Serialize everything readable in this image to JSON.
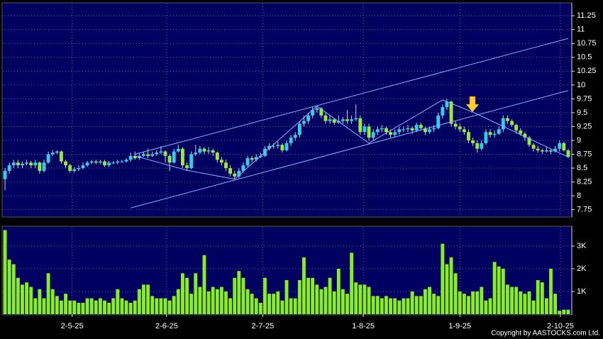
{
  "chart_data": [
    {
      "type": "candlestick",
      "up_color": "#33ccee",
      "down_color": "#99e83a",
      "wick_color": "#cfcfcf",
      "line_color": "#7fb2ff",
      "open": [
        8.3,
        8.45,
        8.55,
        8.6,
        8.55,
        8.58,
        8.6,
        8.55,
        8.6,
        8.45,
        8.6,
        8.75,
        8.78,
        8.8,
        8.62,
        8.55,
        8.45,
        8.48,
        8.5,
        8.55,
        8.6,
        8.62,
        8.6,
        8.62,
        8.55,
        8.6,
        8.6,
        8.62,
        8.62,
        8.65,
        8.72,
        8.68,
        8.72,
        8.75,
        8.72,
        8.75,
        8.78,
        8.8,
        8.72,
        8.6,
        8.8,
        8.85,
        8.55,
        8.5,
        8.75,
        8.78,
        8.85,
        8.8,
        8.82,
        8.78,
        8.65,
        8.6,
        8.5,
        8.4,
        8.35,
        8.45,
        8.55,
        8.68,
        8.65,
        8.7,
        8.72,
        8.85,
        8.9,
        8.9,
        8.92,
        8.82,
        8.95,
        9.05,
        9.1,
        9.3,
        9.35,
        9.45,
        9.55,
        9.58,
        9.45,
        9.35,
        9.38,
        9.32,
        9.35,
        9.38,
        9.35,
        9.38,
        9.4,
        9.15,
        9.25,
        9.05,
        9.15,
        9.2,
        9.22,
        9.15,
        9.1,
        9.15,
        9.2,
        9.2,
        9.22,
        9.18,
        9.28,
        9.22,
        9.15,
        9.2,
        9.22,
        9.45,
        9.6,
        9.7,
        9.3,
        9.25,
        9.2,
        9.15,
        9.0,
        8.95,
        8.85,
        8.95,
        9.15,
        9.1,
        9.12,
        9.2,
        9.4,
        9.35,
        9.28,
        9.18,
        9.12,
        9.05,
        8.92,
        8.85,
        8.82,
        8.8,
        8.82,
        8.8,
        8.85,
        8.95,
        8.82
      ],
      "high": [
        8.5,
        8.6,
        8.65,
        8.65,
        8.62,
        8.65,
        8.63,
        8.65,
        8.62,
        8.65,
        8.8,
        8.82,
        8.82,
        8.82,
        8.65,
        8.58,
        8.52,
        8.55,
        8.6,
        8.63,
        8.65,
        8.65,
        8.65,
        8.65,
        8.63,
        8.63,
        8.65,
        8.65,
        8.68,
        8.78,
        8.8,
        8.78,
        8.8,
        8.85,
        8.8,
        8.82,
        8.9,
        8.82,
        8.75,
        8.85,
        8.92,
        8.88,
        8.6,
        8.8,
        8.92,
        8.9,
        8.88,
        8.88,
        8.85,
        8.8,
        8.7,
        8.65,
        8.55,
        8.45,
        8.5,
        8.6,
        8.72,
        8.72,
        8.75,
        8.78,
        8.9,
        8.95,
        8.95,
        8.98,
        8.95,
        9.0,
        9.1,
        9.15,
        9.35,
        9.45,
        9.5,
        9.6,
        9.62,
        9.6,
        9.5,
        9.45,
        9.4,
        9.45,
        9.42,
        9.55,
        9.45,
        9.65,
        9.45,
        9.3,
        9.3,
        9.2,
        9.25,
        9.28,
        9.25,
        9.2,
        9.2,
        9.25,
        9.25,
        9.28,
        9.25,
        9.32,
        9.32,
        9.25,
        9.25,
        9.28,
        9.5,
        9.65,
        9.75,
        9.72,
        9.35,
        9.3,
        9.25,
        9.2,
        9.05,
        9.0,
        9.0,
        9.2,
        9.2,
        9.18,
        9.25,
        9.45,
        9.45,
        9.38,
        9.3,
        9.22,
        9.15,
        9.08,
        8.95,
        8.9,
        8.85,
        8.88,
        8.85,
        8.9,
        9.0,
        8.98,
        8.85
      ],
      "low": [
        8.1,
        8.4,
        8.5,
        8.5,
        8.5,
        8.55,
        8.5,
        8.5,
        8.4,
        8.42,
        8.58,
        8.72,
        8.75,
        8.58,
        8.5,
        8.42,
        8.42,
        8.45,
        8.48,
        8.52,
        8.57,
        8.57,
        8.57,
        8.52,
        8.52,
        8.57,
        8.57,
        8.6,
        8.6,
        8.62,
        8.65,
        8.65,
        8.7,
        8.68,
        8.7,
        8.72,
        8.75,
        8.6,
        8.45,
        8.58,
        8.78,
        8.5,
        8.45,
        8.48,
        8.72,
        8.75,
        8.75,
        8.75,
        8.72,
        8.6,
        8.55,
        8.45,
        8.35,
        8.3,
        8.32,
        8.42,
        8.52,
        8.6,
        8.62,
        8.68,
        8.7,
        8.82,
        8.85,
        8.85,
        8.78,
        8.8,
        8.9,
        9.0,
        9.05,
        9.25,
        9.3,
        9.4,
        9.5,
        9.4,
        9.3,
        9.3,
        9.28,
        9.3,
        9.3,
        9.3,
        9.3,
        9.35,
        9.1,
        9.1,
        9.0,
        9.0,
        9.1,
        9.15,
        9.1,
        9.05,
        9.05,
        9.1,
        9.15,
        9.15,
        9.12,
        9.15,
        9.18,
        9.1,
        9.12,
        9.15,
        9.2,
        9.4,
        9.55,
        9.25,
        9.2,
        9.15,
        9.1,
        8.95,
        8.9,
        8.78,
        8.82,
        8.92,
        9.05,
        9.05,
        9.1,
        9.15,
        9.3,
        9.25,
        9.12,
        9.08,
        9.0,
        8.88,
        8.8,
        8.78,
        8.75,
        8.78,
        8.75,
        8.78,
        8.8,
        8.8,
        8.68
      ],
      "close": [
        8.45,
        8.55,
        8.6,
        8.55,
        8.58,
        8.6,
        8.55,
        8.6,
        8.45,
        8.6,
        8.75,
        8.78,
        8.8,
        8.62,
        8.55,
        8.45,
        8.48,
        8.5,
        8.55,
        8.6,
        8.62,
        8.6,
        8.62,
        8.55,
        8.6,
        8.6,
        8.62,
        8.62,
        8.65,
        8.72,
        8.68,
        8.72,
        8.75,
        8.72,
        8.75,
        8.78,
        8.8,
        8.72,
        8.6,
        8.8,
        8.85,
        8.55,
        8.5,
        8.75,
        8.78,
        8.85,
        8.8,
        8.82,
        8.78,
        8.65,
        8.6,
        8.5,
        8.4,
        8.35,
        8.45,
        8.55,
        8.68,
        8.65,
        8.7,
        8.72,
        8.85,
        8.9,
        8.9,
        8.92,
        8.82,
        8.95,
        9.05,
        9.1,
        9.3,
        9.35,
        9.45,
        9.55,
        9.58,
        9.45,
        9.35,
        9.38,
        9.32,
        9.35,
        9.38,
        9.35,
        9.38,
        9.4,
        9.15,
        9.25,
        9.05,
        9.15,
        9.2,
        9.22,
        9.15,
        9.1,
        9.15,
        9.2,
        9.2,
        9.22,
        9.18,
        9.28,
        9.22,
        9.15,
        9.2,
        9.22,
        9.45,
        9.6,
        9.7,
        9.3,
        9.25,
        9.2,
        9.15,
        9.0,
        8.95,
        8.85,
        8.95,
        9.15,
        9.1,
        9.12,
        9.2,
        9.4,
        9.35,
        9.28,
        9.18,
        9.12,
        9.05,
        8.92,
        8.85,
        8.82,
        8.8,
        8.82,
        8.8,
        8.85,
        8.95,
        8.82,
        8.7
      ],
      "lines": [
        {
          "x": [
            30,
            130
          ],
          "y": [
            8.75,
            10.84
          ]
        },
        {
          "x": [
            29,
            130
          ],
          "y": [
            7.78,
            9.9
          ]
        },
        {
          "x": [
            30,
            42,
            53,
            72,
            84,
            101,
            108,
            130
          ],
          "y": [
            8.72,
            8.46,
            8.3,
            9.62,
            8.95,
            9.73,
            9.51,
            8.7
          ]
        }
      ],
      "xlim": [
        -0.5,
        130.5
      ],
      "ylim": [
        7.63,
        11.47
      ],
      "yticks": [
        7.75,
        8,
        8.25,
        8.5,
        8.75,
        9,
        9.25,
        9.5,
        9.75,
        10,
        10.25,
        10.5,
        10.75,
        11,
        11.25
      ],
      "grid": true
    },
    {
      "type": "bar",
      "color": "#88ee22",
      "values": [
        3700,
        2400,
        2200,
        1600,
        1300,
        1400,
        1200,
        700,
        1100,
        700,
        1800,
        1100,
        800,
        600,
        900,
        600,
        600,
        500,
        500,
        700,
        700,
        600,
        700,
        600,
        500,
        700,
        1100,
        700,
        600,
        500,
        600,
        1100,
        1300,
        1300,
        800,
        700,
        700,
        700,
        600,
        800,
        1100,
        1800,
        1600,
        900,
        1800,
        1200,
        2600,
        1000,
        1200,
        1100,
        1200,
        1000,
        700,
        1600,
        1900,
        1600,
        1100,
        900,
        700,
        500,
        1600,
        900,
        900,
        1000,
        600,
        1500,
        700,
        700,
        1500,
        2500,
        1600,
        1600,
        1300,
        1100,
        1200,
        1600,
        1000,
        2000,
        1100,
        900,
        2700,
        1400,
        1300,
        1300,
        1200,
        800,
        800,
        700,
        800,
        700,
        700,
        600,
        700,
        700,
        1000,
        800,
        800,
        1100,
        1200,
        900,
        800,
        3100,
        2200,
        2500,
        1800,
        1000,
        900,
        800,
        1000,
        1000,
        1200,
        600,
        700,
        2300,
        2100,
        2000,
        1300,
        1200,
        1200,
        1000,
        900,
        1000,
        600,
        1500,
        1400,
        700,
        2000,
        900,
        150,
        200,
        200
      ],
      "xlim": [
        -0.5,
        130.5
      ],
      "xticks": [
        {
          "value": 15.5,
          "label": "2-5-25"
        },
        {
          "value": 37.3,
          "label": "2-6-25"
        },
        {
          "value": 59.5,
          "label": "2-7-25"
        },
        {
          "value": 82.7,
          "label": "1-8-25"
        },
        {
          "value": 105,
          "label": "1-9-25"
        },
        {
          "value": 128.2,
          "label": "2-10-25"
        }
      ],
      "ylim": [
        0,
        3840
      ],
      "yticks": [
        {
          "value": 1000,
          "label": "1K"
        },
        {
          "value": 2000,
          "label": "2K"
        },
        {
          "value": 3000,
          "label": "3K"
        }
      ],
      "grid": true
    }
  ],
  "copyright": "Copyright by AASTOCKS.com Ltd."
}
